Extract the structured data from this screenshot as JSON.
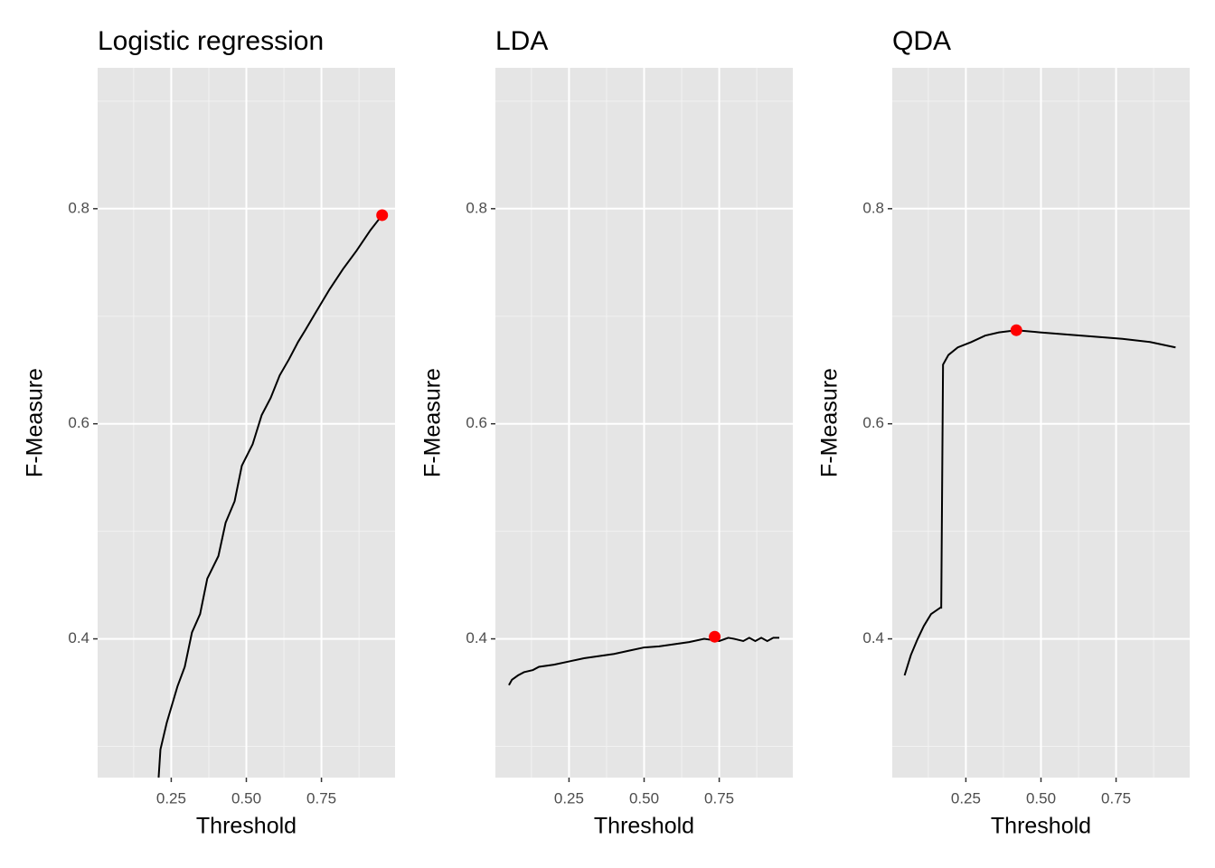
{
  "chart_data": [
    {
      "type": "line",
      "title": "Logistic regression",
      "xlabel": "Threshold",
      "ylabel": "F-Measure",
      "color": "#000000",
      "x": [
        0.208,
        0.214,
        0.235,
        0.271,
        0.295,
        0.319,
        0.346,
        0.37,
        0.407,
        0.431,
        0.461,
        0.485,
        0.521,
        0.551,
        0.581,
        0.611,
        0.642,
        0.672,
        0.696,
        0.732,
        0.777,
        0.822,
        0.867,
        0.913,
        0.952
      ],
      "values": [
        0.271,
        0.297,
        0.322,
        0.356,
        0.374,
        0.406,
        0.423,
        0.456,
        0.477,
        0.508,
        0.528,
        0.561,
        0.581,
        0.608,
        0.624,
        0.645,
        0.66,
        0.676,
        0.687,
        0.704,
        0.725,
        0.744,
        0.761,
        0.78,
        0.794
      ],
      "best": {
        "x": 0.952,
        "y": 0.794,
        "color": "#ff0000"
      },
      "xlim": [
        0.005,
        0.995
      ],
      "ylim": [
        0.271,
        0.931
      ],
      "xticks": [
        0.25,
        {
          "value": 0.5,
          "label": "0.50"
        },
        0.75
      ],
      "yticks": [
        0.4,
        0.6,
        0.8
      ],
      "grid": true
    },
    {
      "type": "line",
      "title": "LDA",
      "xlabel": "Threshold",
      "ylabel": "F-Measure",
      "color": "#000000",
      "x": [
        0.05,
        0.06,
        0.08,
        0.1,
        0.13,
        0.15,
        0.2,
        0.25,
        0.3,
        0.35,
        0.4,
        0.45,
        0.5,
        0.55,
        0.6,
        0.65,
        0.7,
        0.75,
        0.78,
        0.8,
        0.83,
        0.85,
        0.87,
        0.89,
        0.91,
        0.93,
        0.95
      ],
      "values": [
        0.357,
        0.362,
        0.366,
        0.369,
        0.371,
        0.374,
        0.376,
        0.379,
        0.382,
        0.384,
        0.386,
        0.389,
        0.392,
        0.393,
        0.395,
        0.397,
        0.4,
        0.398,
        0.401,
        0.4,
        0.398,
        0.401,
        0.398,
        0.401,
        0.398,
        0.401,
        0.401
      ],
      "best": {
        "x": 0.735,
        "y": 0.402,
        "color": "#ff0000"
      },
      "xlim": [
        0.005,
        0.995
      ],
      "ylim": [
        0.271,
        0.931
      ],
      "xticks": [
        0.25,
        {
          "value": 0.5,
          "label": "0.50"
        },
        0.75
      ],
      "yticks": [
        0.4,
        0.6,
        0.8
      ],
      "grid": true
    },
    {
      "type": "line",
      "title": "QDA",
      "xlabel": "Threshold",
      "ylabel": "F-Measure",
      "color": "#000000",
      "x": [
        0.046,
        0.067,
        0.088,
        0.11,
        0.134,
        0.165,
        0.168,
        0.174,
        0.192,
        0.223,
        0.268,
        0.314,
        0.36,
        0.418,
        0.497,
        0.588,
        0.68,
        0.771,
        0.863,
        0.948
      ],
      "values": [
        0.366,
        0.385,
        0.399,
        0.412,
        0.423,
        0.429,
        0.429,
        0.655,
        0.664,
        0.671,
        0.676,
        0.682,
        0.685,
        0.687,
        0.685,
        0.683,
        0.681,
        0.679,
        0.676,
        0.671
      ],
      "best": {
        "x": 0.418,
        "y": 0.687,
        "color": "#ff0000"
      },
      "xlim": [
        0.005,
        0.995
      ],
      "ylim": [
        0.271,
        0.931
      ],
      "xticks": [
        0.25,
        {
          "value": 0.5,
          "label": "0.50"
        },
        0.75
      ],
      "yticks": [
        0.4,
        0.6,
        0.8
      ],
      "grid": true
    }
  ]
}
